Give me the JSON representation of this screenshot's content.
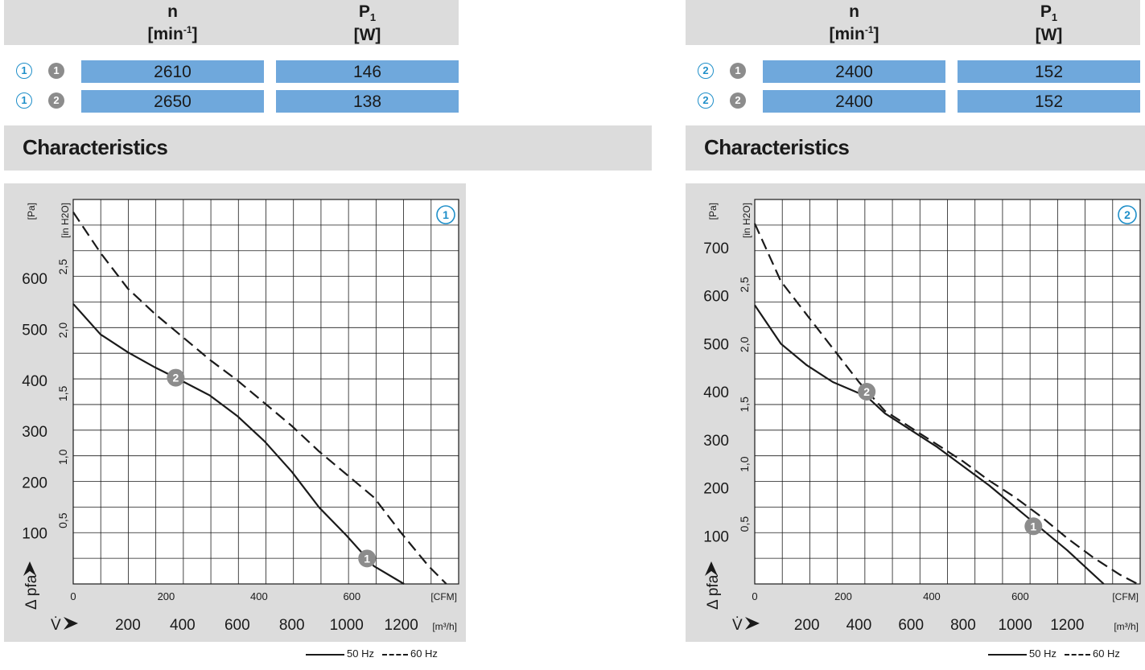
{
  "panels": [
    {
      "header": {
        "n_symbol": "n",
        "n_unit": "[min",
        "n_unit_exp": "-1",
        "n_unit_close": "]",
        "p_symbol": "P",
        "p_sub": "1",
        "p_unit": "[W]"
      },
      "rows": [
        {
          "chart_marker": "1",
          "curve_marker": "1",
          "n": "2610",
          "p1": "146"
        },
        {
          "chart_marker": "1",
          "curve_marker": "2",
          "n": "2650",
          "p1": "138"
        }
      ],
      "section_title": "Characteristics"
    },
    {
      "header": {
        "n_symbol": "n",
        "n_unit": "[min",
        "n_unit_exp": "-1",
        "n_unit_close": "]",
        "p_symbol": "P",
        "p_sub": "1",
        "p_unit": "[W]"
      },
      "rows": [
        {
          "chart_marker": "2",
          "curve_marker": "1",
          "n": "2400",
          "p1": "152"
        },
        {
          "chart_marker": "2",
          "curve_marker": "2",
          "n": "2400",
          "p1": "152"
        }
      ],
      "section_title": "Characteristics"
    }
  ],
  "legend": {
    "solid": "50 Hz",
    "dashed": "60 Hz"
  },
  "colors": {
    "header_bg": "#dcdcdc",
    "value_cell": "#6fa8dc",
    "marker_blue": "#1f8fc9",
    "marker_grey": "#8c8c8c"
  },
  "chart_data": [
    {
      "type": "line",
      "chart_marker": "1",
      "ylabel": "Δ pfa",
      "ylabel_unit": "[Pa]",
      "y2label_unit": "[in H2O]",
      "xlabel": "V̇",
      "xlabel_unit": "[m³/h]",
      "x2label_unit": "[CFM]",
      "x_ticks_m3h": [
        200,
        400,
        600,
        800,
        1000,
        1200
      ],
      "x_ticks_cfm": [
        0,
        200,
        400,
        600
      ],
      "y_ticks_pa": [
        100,
        200,
        300,
        400,
        500,
        600
      ],
      "y_ticks_inh2o": [
        "0,5",
        "1,0",
        "1,5",
        "2,0",
        "2,5"
      ],
      "xlim_m3h": [
        0,
        1410
      ],
      "ylim_pa": [
        0,
        755
      ],
      "grid": true,
      "series": [
        {
          "name": "50 Hz",
          "style": "solid",
          "marker": "1",
          "x": [
            0,
            100,
            200,
            300,
            375,
            500,
            600,
            700,
            800,
            900,
            1000,
            1100,
            1210
          ],
          "y": [
            550,
            490,
            455,
            425,
            405,
            370,
            330,
            280,
            220,
            150,
            95,
            35,
            0
          ]
        },
        {
          "name": "60 Hz",
          "style": "dashed",
          "x": [
            0,
            100,
            200,
            300,
            400,
            500,
            600,
            700,
            800,
            900,
            1000,
            1100,
            1200,
            1300,
            1365
          ],
          "y": [
            730,
            650,
            580,
            530,
            485,
            440,
            400,
            355,
            310,
            260,
            215,
            170,
            100,
            35,
            0
          ]
        }
      ],
      "annotations": [
        {
          "marker": "2",
          "x": 375,
          "y": 405
        },
        {
          "marker": "1",
          "x": 1075,
          "y": 50
        }
      ]
    },
    {
      "type": "line",
      "chart_marker": "2",
      "ylabel": "Δ pfa",
      "ylabel_unit": "[Pa]",
      "y2label_unit": "[in H2O]",
      "xlabel": "V̇",
      "xlabel_unit": "[m³/h]",
      "x2label_unit": "[CFM]",
      "x_ticks_m3h": [
        200,
        400,
        600,
        800,
        1000,
        1200
      ],
      "x_ticks_cfm": [
        0,
        200,
        400,
        600
      ],
      "y_ticks_pa": [
        100,
        200,
        300,
        400,
        500,
        600,
        700
      ],
      "y_ticks_inh2o": [
        "0,5",
        "1,0",
        "1,5",
        "2,0",
        "2,5"
      ],
      "xlim_m3h": [
        0,
        1480
      ],
      "ylim_pa": [
        0,
        800
      ],
      "grid": true,
      "series": [
        {
          "name": "50 Hz",
          "style": "solid",
          "marker": "1",
          "x": [
            0,
            100,
            200,
            300,
            430,
            500,
            600,
            700,
            800,
            900,
            1000,
            1100,
            1200,
            1300,
            1340
          ],
          "y": [
            580,
            500,
            455,
            420,
            390,
            355,
            320,
            285,
            245,
            205,
            160,
            115,
            70,
            20,
            0
          ]
        },
        {
          "name": "60 Hz",
          "style": "dashed",
          "x": [
            0,
            100,
            200,
            300,
            400,
            500,
            600,
            700,
            800,
            900,
            1000,
            1100,
            1200,
            1300,
            1400,
            1470
          ],
          "y": [
            750,
            630,
            560,
            490,
            420,
            360,
            325,
            290,
            255,
            215,
            180,
            140,
            95,
            55,
            20,
            0
          ]
        }
      ],
      "annotations": [
        {
          "marker": "2",
          "x": 430,
          "y": 400
        },
        {
          "marker": "1",
          "x": 1070,
          "y": 120
        }
      ]
    }
  ]
}
